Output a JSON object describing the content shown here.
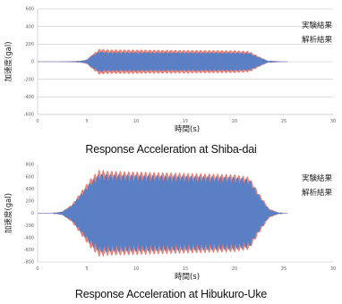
{
  "captions": {
    "chart1": "Response Acceleration at Shiba-dai",
    "chart2": "Response Acceleration at Hibukuro-Uke"
  },
  "chart_data": [
    {
      "type": "line",
      "title": "Response Acceleration at Shiba-dai",
      "xlabel": "時間(s)",
      "ylabel": "加速度(gal)",
      "xlim": [
        0,
        30
      ],
      "ylim": [
        -600,
        600
      ],
      "xticks": [
        "0",
        "5",
        "10",
        "15",
        "20",
        "25",
        "30"
      ],
      "yticks": [
        "600",
        "400",
        "200",
        "0",
        "-200",
        "-400",
        "-600"
      ],
      "grid": true,
      "legend": "top-right",
      "series": [
        {
          "name": "実験結果",
          "color": "#e8837a",
          "envelope": {
            "t": [
              0,
              2,
              4,
              5,
              5.5,
              6.3,
              6.8,
              20,
              21.5,
              22.5,
              23.5,
              25
            ],
            "a": [
              0,
              0,
              3,
              25,
              80,
              150,
              140,
              130,
              120,
              60,
              5,
              0
            ]
          }
        },
        {
          "name": "解析結果",
          "color": "#5b7fc4",
          "envelope": {
            "t": [
              0,
              2,
              4,
              5,
              5.5,
              6.3,
              6.8,
              20,
              21.5,
              22.5,
              23.5,
              25
            ],
            "a": [
              0,
              0,
              2,
              20,
              70,
              120,
              110,
              105,
              100,
              50,
              4,
              0
            ]
          }
        }
      ]
    },
    {
      "type": "line",
      "title": "Response Acceleration at Hibukuro-Uke",
      "xlabel": "時間(s)",
      "ylabel": "加速度(gal)",
      "xlim": [
        0,
        30
      ],
      "ylim": [
        -800,
        800
      ],
      "xticks": [
        "0",
        "5",
        "10",
        "15",
        "20",
        "25",
        "30"
      ],
      "yticks": [
        "800",
        "600",
        "400",
        "200",
        "0",
        "-200",
        "-400",
        "-600",
        "-800"
      ],
      "grid": false,
      "legend": "top-right",
      "series": [
        {
          "name": "実験結果",
          "color": "#e8837a",
          "envelope": {
            "t": [
              0,
              1.5,
              2.5,
              3.5,
              4.5,
              5.5,
              6.3,
              7,
              20,
              21.5,
              22.5,
              23.5,
              24.5,
              25
            ],
            "a": [
              0,
              0,
              30,
              150,
              380,
              600,
              720,
              700,
              640,
              600,
              330,
              80,
              10,
              0
            ]
          }
        },
        {
          "name": "解析結果",
          "color": "#5b7fc4",
          "envelope": {
            "t": [
              0,
              1.5,
              2.5,
              3.5,
              4.5,
              5.5,
              6.3,
              7,
              20,
              21.5,
              22.5,
              23.5,
              24.5,
              25
            ],
            "a": [
              0,
              0,
              25,
              130,
              340,
              540,
              650,
              640,
              600,
              560,
              290,
              60,
              8,
              0
            ]
          }
        }
      ]
    }
  ]
}
